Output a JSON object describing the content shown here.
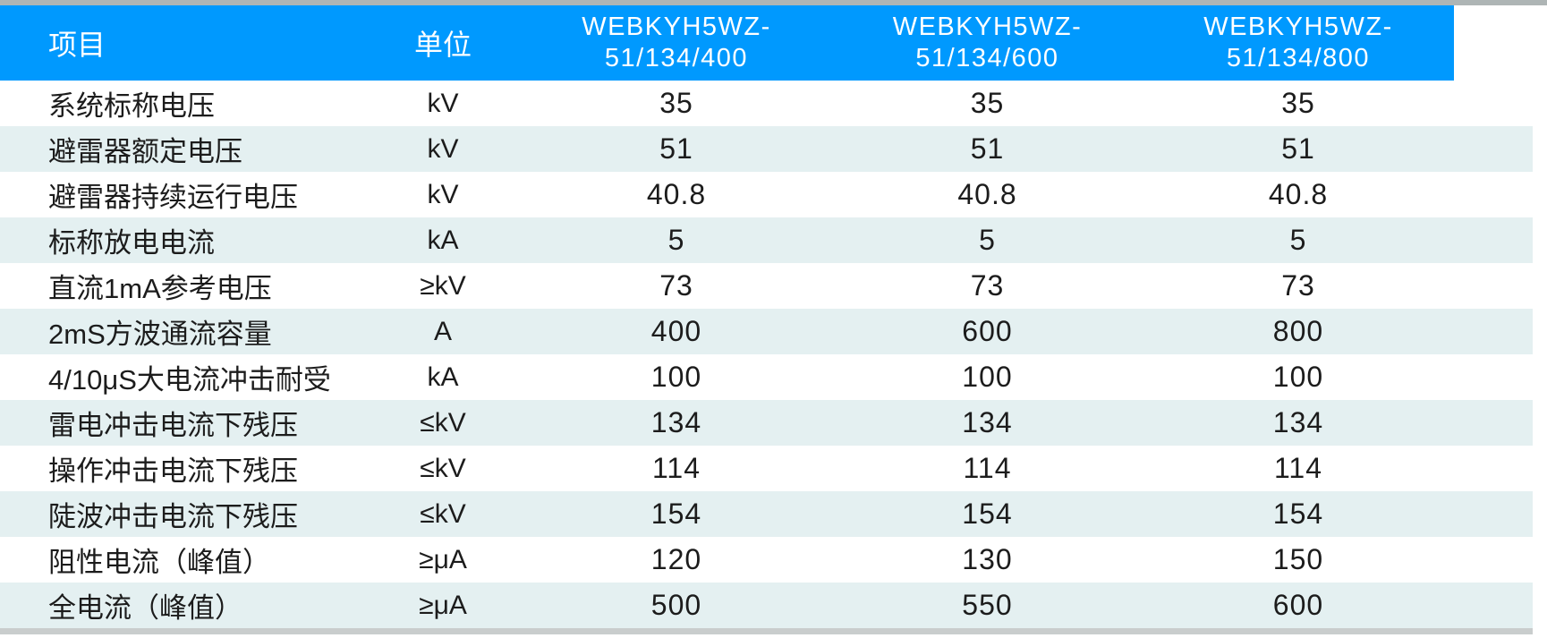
{
  "colors": {
    "header_bg": "#0099FE",
    "header_text": "#FFFFFF",
    "row_alt_bg": "#E4F0F1",
    "row_bg": "#FFFFFF",
    "body_text": "#1C1C1C",
    "top_strip": "#AEB5B5",
    "bottom_strip": "#C9CDCD"
  },
  "table": {
    "columns": [
      {
        "label": "项目"
      },
      {
        "label": "单位"
      },
      {
        "line1": "WEBKYH5WZ-",
        "line2": "51/134/400"
      },
      {
        "line1": "WEBKYH5WZ-",
        "line2": "51/134/600"
      },
      {
        "line1": "WEBKYH5WZ-",
        "line2": "51/134/800"
      }
    ],
    "rows": [
      {
        "item": "系统标称电压",
        "unit": "kV",
        "values": [
          "35",
          "35",
          "35"
        ]
      },
      {
        "item": "避雷器额定电压",
        "unit": "kV",
        "values": [
          "51",
          "51",
          "51"
        ]
      },
      {
        "item": "避雷器持续运行电压",
        "unit": "kV",
        "values": [
          "40.8",
          "40.8",
          "40.8"
        ]
      },
      {
        "item": "标称放电电流",
        "unit": "kA",
        "values": [
          "5",
          "5",
          "5"
        ]
      },
      {
        "item": "直流1mA参考电压",
        "unit": "≥kV",
        "values": [
          "73",
          "73",
          "73"
        ]
      },
      {
        "item": "2mS方波通流容量",
        "unit": "A",
        "values": [
          "400",
          "600",
          "800"
        ]
      },
      {
        "item": "4/10μS大电流冲击耐受",
        "unit": "kA",
        "values": [
          "100",
          "100",
          "100"
        ]
      },
      {
        "item": "雷电冲击电流下残压",
        "unit": "≤kV",
        "values": [
          "134",
          "134",
          "134"
        ]
      },
      {
        "item": "操作冲击电流下残压",
        "unit": "≤kV",
        "values": [
          "114",
          "114",
          "114"
        ]
      },
      {
        "item": "陡波冲击电流下残压",
        "unit": "≤kV",
        "values": [
          "154",
          "154",
          "154"
        ]
      },
      {
        "item": "阻性电流（峰值）",
        "unit": "≥μA",
        "values": [
          "120",
          "130",
          "150"
        ]
      },
      {
        "item": "全电流（峰值）",
        "unit": "≥μA",
        "values": [
          "500",
          "550",
          "600"
        ]
      }
    ]
  }
}
